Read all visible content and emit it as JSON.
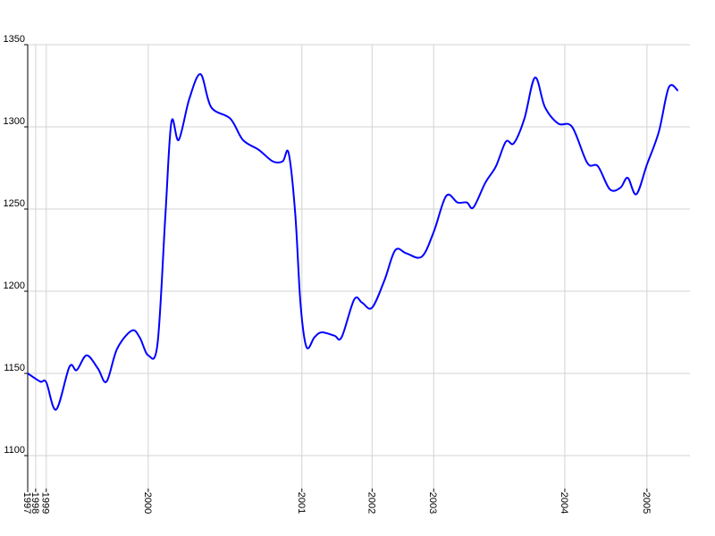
{
  "chart_data": {
    "type": "line",
    "x": [
      0,
      1.9,
      2.8,
      4.3,
      6.3,
      7.4,
      8.9,
      10.6,
      11.9,
      13.5,
      15.7,
      16.9,
      18.2,
      19.6,
      20.8,
      21.7,
      22.8,
      24.4,
      26.1,
      27.7,
      30.6,
      32.5,
      34.9,
      37,
      38.5,
      39.4,
      40.4,
      41.2,
      42.1,
      43.3,
      44.4,
      46.3,
      47.4,
      49.3,
      50.5,
      52,
      53.9,
      55.5,
      57.2,
      59.5,
      61.3,
      63.2,
      64.9,
      66.3,
      67.3,
      69.1,
      70.7,
      72.2,
      73.4,
      75,
      76.6,
      78.1,
      80.1,
      82.2,
      84.5,
      86.1,
      87.9,
      89.5,
      90.6,
      91.9,
      93.5,
      95.3,
      96.8,
      98.2
    ],
    "series": [
      {
        "color": "#0000ff",
        "values": [
          1150,
          1145,
          1144.6,
          1128,
          1154,
          1152,
          1161,
          1153,
          1145,
          1165,
          1176,
          1172,
          1161,
          1168,
          1247,
          1303,
          1292,
          1317,
          1332,
          1312,
          1305,
          1292,
          1286,
          1279,
          1279,
          1284,
          1247,
          1192,
          1166,
          1172,
          1175,
          1173,
          1172,
          1195,
          1193,
          1190,
          1207,
          1225,
          1223,
          1221,
          1236,
          1258,
          1254,
          1254,
          1251,
          1266,
          1276,
          1291,
          1290,
          1305,
          1330,
          1312,
          1302,
          1300,
          1278,
          1276,
          1262,
          1263,
          1269,
          1259,
          1277,
          1297,
          1324,
          1322
        ]
      }
    ],
    "xlim": [
      0,
      100
    ],
    "xticks": [
      {
        "value": 0,
        "label": "1997"
      },
      {
        "value": 1.2,
        "label": "1998"
      },
      {
        "value": 2.8,
        "label": "1999"
      },
      {
        "value": 18.2,
        "label": "2000"
      },
      {
        "value": 41.4,
        "label": "2001"
      },
      {
        "value": 52,
        "label": "2002"
      },
      {
        "value": 61.3,
        "label": "2003"
      },
      {
        "value": 81.1,
        "label": "2004"
      },
      {
        "value": 93.5,
        "label": "2005"
      }
    ],
    "ylim": [
      1080,
      1350
    ],
    "yticks": [
      1100,
      1150,
      1200,
      1250,
      1300,
      1350
    ],
    "grid": true
  }
}
